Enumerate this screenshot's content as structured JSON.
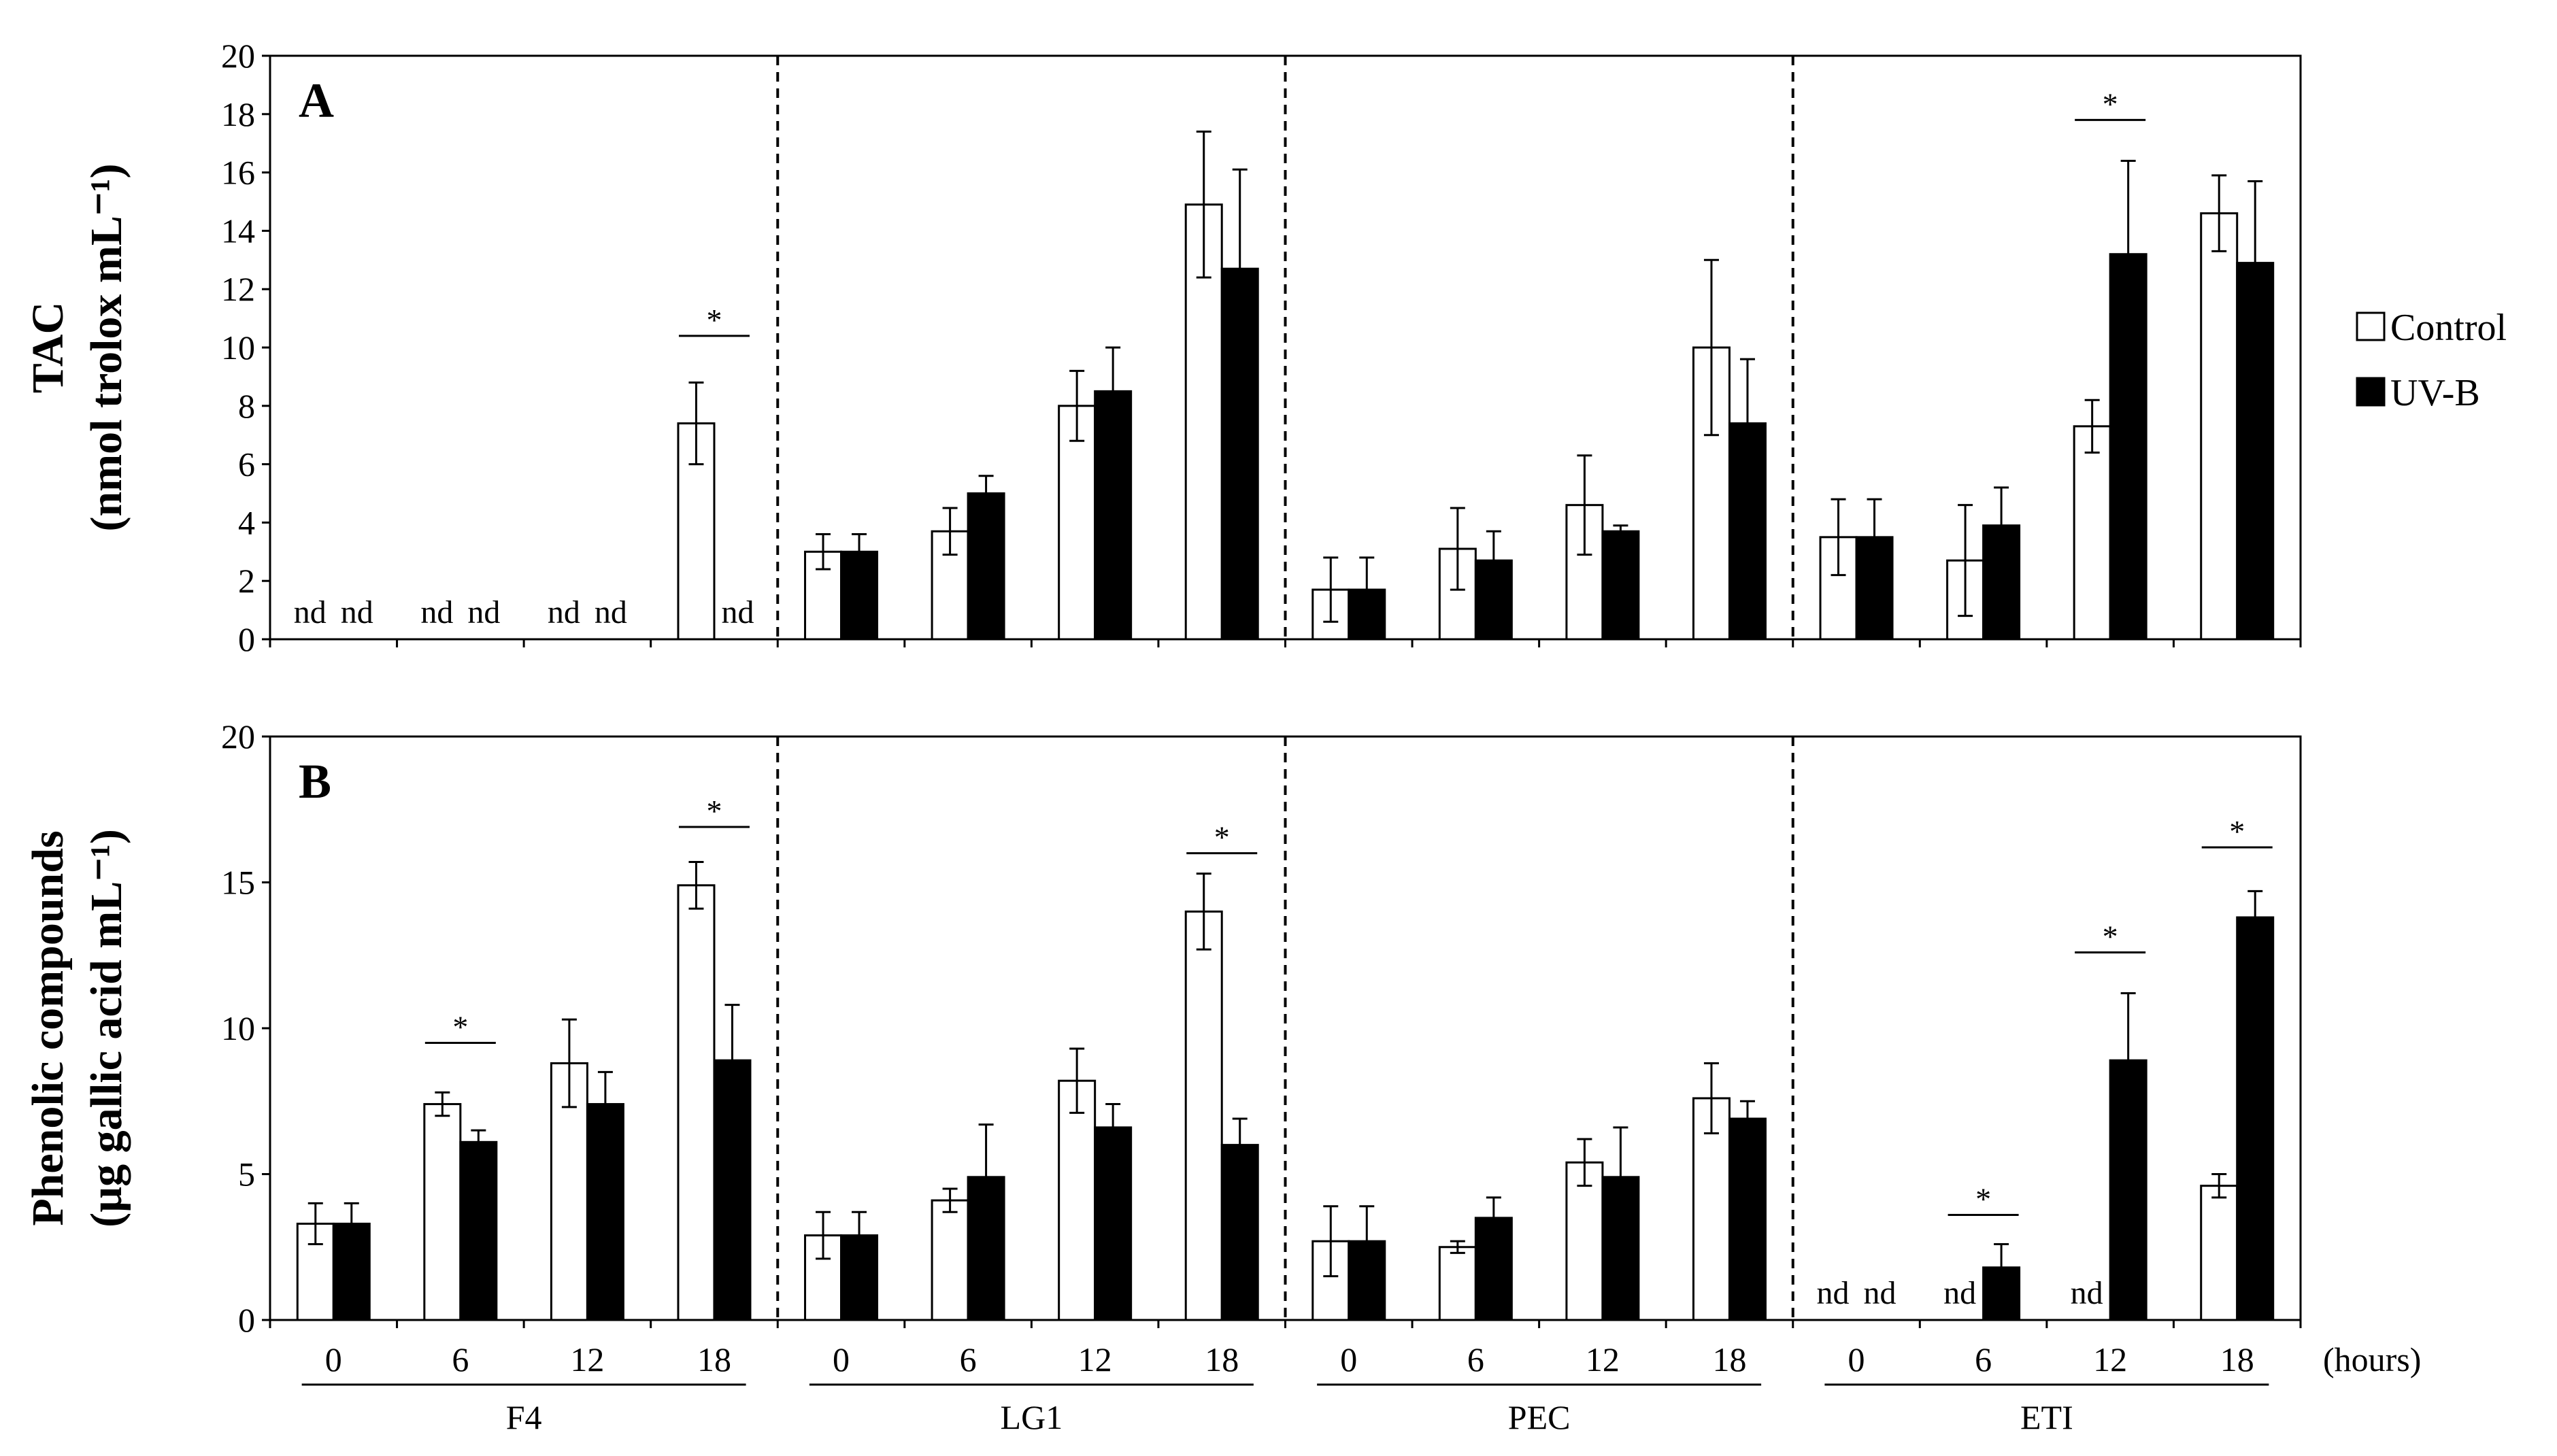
{
  "chart_data": [
    {
      "type": "bar",
      "panel": "A",
      "ylabel": [
        "TAC",
        "(nmol trolox mL⁻¹)"
      ],
      "ylim": [
        0,
        20
      ],
      "yticks": [
        0,
        2,
        4,
        6,
        8,
        10,
        12,
        14,
        16,
        18,
        20
      ],
      "groups": [
        "F4",
        "LG1",
        "PEC",
        "ETI"
      ],
      "times": [
        "0",
        "6",
        "12",
        "18"
      ],
      "x_unit": "(hours)",
      "series": [
        {
          "name": "Control",
          "values": [
            null,
            null,
            null,
            7.4,
            3.0,
            3.7,
            8.0,
            14.9,
            1.7,
            3.1,
            4.6,
            10.0,
            3.5,
            2.7,
            7.3,
            14.6
          ],
          "errors": [
            0,
            0,
            0,
            1.4,
            0.6,
            0.8,
            1.2,
            2.5,
            1.1,
            1.4,
            1.7,
            3.0,
            1.3,
            1.9,
            0.9,
            1.3
          ]
        },
        {
          "name": "UV-B",
          "values": [
            null,
            null,
            null,
            null,
            3.0,
            5.0,
            8.5,
            12.7,
            1.7,
            2.7,
            3.7,
            7.4,
            3.5,
            3.9,
            13.2,
            12.9
          ],
          "errors": [
            0,
            0,
            0,
            0,
            0.6,
            0.6,
            1.5,
            3.4,
            1.1,
            1.0,
            0.2,
            2.2,
            1.3,
            1.3,
            3.2,
            2.8
          ]
        }
      ],
      "nd_labels": [
        {
          "index": 0,
          "series": 0,
          "text": "nd"
        },
        {
          "index": 0,
          "series": 1,
          "text": "nd"
        },
        {
          "index": 1,
          "series": 0,
          "text": "nd"
        },
        {
          "index": 1,
          "series": 1,
          "text": "nd"
        },
        {
          "index": 2,
          "series": 0,
          "text": "nd"
        },
        {
          "index": 2,
          "series": 1,
          "text": "nd"
        },
        {
          "index": 3,
          "series": 1,
          "text": "nd"
        }
      ],
      "significance": [
        {
          "index": 3,
          "y": 10.4,
          "text": "*"
        },
        {
          "index": 14,
          "y": 17.8,
          "text": "*"
        }
      ]
    },
    {
      "type": "bar",
      "panel": "B",
      "ylabel": [
        "Phenolic compounds",
        "(µg gallic acid mL⁻¹)"
      ],
      "ylim": [
        0,
        20
      ],
      "yticks": [
        0,
        5,
        10,
        15,
        20
      ],
      "groups": [
        "F4",
        "LG1",
        "PEC",
        "ETI"
      ],
      "times": [
        "0",
        "6",
        "12",
        "18"
      ],
      "x_unit": "(hours)",
      "series": [
        {
          "name": "Control",
          "values": [
            3.3,
            7.4,
            8.8,
            14.9,
            2.9,
            4.1,
            8.2,
            14.0,
            2.7,
            2.5,
            5.4,
            7.6,
            null,
            null,
            null,
            4.6
          ],
          "errors": [
            0.7,
            0.4,
            1.5,
            0.8,
            0.8,
            0.4,
            1.1,
            1.3,
            1.2,
            0.2,
            0.8,
            1.2,
            0,
            0,
            0,
            0.4
          ]
        },
        {
          "name": "UV-B",
          "values": [
            3.3,
            6.1,
            7.4,
            8.9,
            2.9,
            4.9,
            6.6,
            6.0,
            2.7,
            3.5,
            4.9,
            6.9,
            null,
            1.8,
            8.9,
            13.8
          ],
          "errors": [
            0.7,
            0.4,
            1.1,
            1.9,
            0.8,
            1.8,
            0.8,
            0.9,
            1.2,
            0.7,
            1.7,
            0.6,
            0,
            0.8,
            2.3,
            0.9
          ]
        }
      ],
      "nd_labels": [
        {
          "index": 12,
          "series": 0,
          "text": "nd"
        },
        {
          "index": 12,
          "series": 1,
          "text": "nd"
        },
        {
          "index": 13,
          "series": 0,
          "text": "nd"
        },
        {
          "index": 14,
          "series": 0,
          "text": "nd"
        }
      ],
      "significance": [
        {
          "index": 1,
          "y": 9.5,
          "text": "*"
        },
        {
          "index": 3,
          "y": 16.9,
          "text": "*"
        },
        {
          "index": 7,
          "y": 16.0,
          "text": "*"
        },
        {
          "index": 13,
          "y": 3.6,
          "text": "*"
        },
        {
          "index": 14,
          "y": 12.6,
          "text": "*"
        },
        {
          "index": 15,
          "y": 16.2,
          "text": "*"
        }
      ]
    }
  ],
  "legend": {
    "items": [
      {
        "label": "Control",
        "color": "#ffffff"
      },
      {
        "label": "UV-B",
        "color": "#000000"
      }
    ]
  },
  "colors": {
    "control": "#ffffff",
    "uvb": "#000000",
    "stroke": "#000000"
  }
}
